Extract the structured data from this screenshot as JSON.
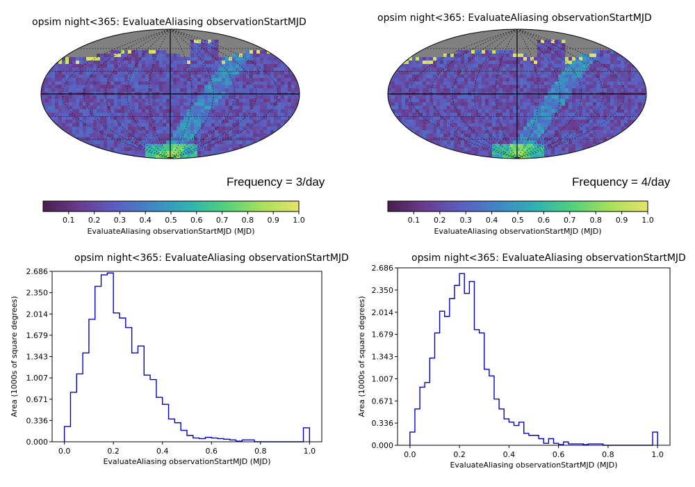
{
  "panels": [
    {
      "map_title": "opsim night<365: EvaluateAliasing observationStartMJD",
      "frequency_label": "Frequency = 3/day",
      "colorbar": {
        "ticks": [
          "0.1",
          "0.2",
          "0.3",
          "0.4",
          "0.5",
          "0.6",
          "0.7",
          "0.8",
          "0.9",
          "1.0"
        ],
        "label": "EvaluateAliasing observationStartMJD (MJD)"
      },
      "hist_title": "opsim night<365: EvaluateAliasing observationStartMJD"
    },
    {
      "map_title": "opsim night<365: EvaluateAliasing observationStartMJD",
      "frequency_label": "Frequency = 4/day",
      "colorbar": {
        "ticks": [
          "0.1",
          "0.2",
          "0.3",
          "0.4",
          "0.5",
          "0.6",
          "0.7",
          "0.8",
          "0.9",
          "1.0"
        ],
        "label": "EvaluateAliasing observationStartMJD (MJD)"
      },
      "hist_title": "opsim night<365: EvaluateAliasing observationStartMJD"
    }
  ],
  "colors": {
    "hist_line": "#0000cc",
    "masked_sky": "#808080",
    "colormap": [
      "#4b1d4f",
      "#6a3c8e",
      "#5b5fc1",
      "#3f88c5",
      "#2fb3b2",
      "#52d17a",
      "#a9e05c",
      "#e6e26a"
    ]
  },
  "chart_data": [
    {
      "type": "histogram",
      "title": "opsim night<365: EvaluateAliasing observationStartMJD",
      "xlabel": "EvaluateAliasing observationStartMJD (MJD)",
      "ylabel": "Area (1000s of square degrees)",
      "xlim": [
        -0.05,
        1.05
      ],
      "ylim": [
        0,
        2.686
      ],
      "x_ticks": [
        "0.0",
        "0.2",
        "0.4",
        "0.6",
        "0.8",
        "1.0"
      ],
      "y_ticks": [
        "0.000",
        "0.336",
        "0.671",
        "1.007",
        "1.343",
        "1.679",
        "2.014",
        "2.350",
        "2.686"
      ],
      "bin_width": 0.025,
      "bin_start": 0.0,
      "values": [
        0.24,
        0.78,
        1.07,
        1.4,
        1.93,
        2.45,
        2.63,
        2.66,
        2.03,
        1.95,
        1.8,
        1.4,
        1.51,
        1.05,
        0.98,
        0.7,
        0.59,
        0.36,
        0.3,
        0.18,
        0.1,
        0.06,
        0.05,
        0.07,
        0.06,
        0.05,
        0.04,
        0.03,
        0.01,
        0.03,
        0.03,
        0.0,
        0.0,
        0.0,
        0.0,
        0.0,
        0.0,
        0.0,
        0.0,
        0.22
      ]
    },
    {
      "type": "histogram",
      "title": "opsim night<365: EvaluateAliasing observationStartMJD",
      "xlabel": "EvaluateAliasing observationStartMJD (MJD)",
      "ylabel": "Area (1000s of square degrees)",
      "xlim": [
        -0.05,
        1.05
      ],
      "ylim": [
        0,
        2.686
      ],
      "x_ticks": [
        "0.0",
        "0.2",
        "0.4",
        "0.6",
        "0.8",
        "1.0"
      ],
      "y_ticks": [
        "0.000",
        "0.336",
        "0.671",
        "1.007",
        "1.343",
        "1.679",
        "2.014",
        "2.350",
        "2.686"
      ],
      "bin_width": 0.02,
      "bin_start": 0.0,
      "values": [
        0.2,
        0.55,
        0.88,
        0.95,
        1.32,
        1.7,
        2.03,
        1.95,
        2.22,
        2.42,
        2.6,
        2.3,
        2.48,
        1.75,
        1.7,
        1.15,
        1.05,
        0.7,
        0.55,
        0.4,
        0.35,
        0.3,
        0.35,
        0.18,
        0.15,
        0.15,
        0.1,
        0.03,
        0.1,
        0.03,
        0.01,
        0.05,
        0.02,
        0.02,
        0.02,
        0.01,
        0.02,
        0.02,
        0.02,
        0.0,
        0.0,
        0.0,
        0.0,
        0.0,
        0.0,
        0.0,
        0.0,
        0.0,
        0.0,
        0.2
      ]
    }
  ]
}
